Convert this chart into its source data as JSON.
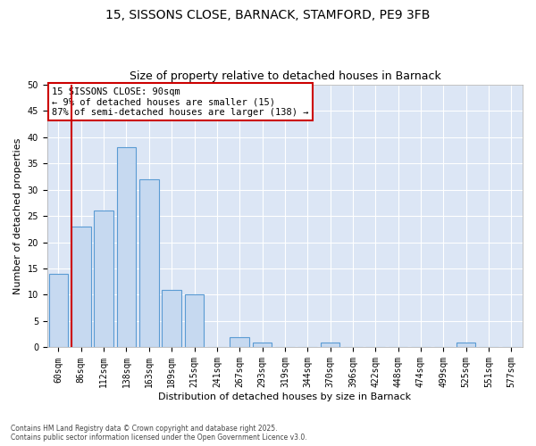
{
  "title_line1": "15, SISSONS CLOSE, BARNACK, STAMFORD, PE9 3FB",
  "title_line2": "Size of property relative to detached houses in Barnack",
  "xlabel": "Distribution of detached houses by size in Barnack",
  "ylabel": "Number of detached properties",
  "footnote": "Contains HM Land Registry data © Crown copyright and database right 2025.\nContains public sector information licensed under the Open Government Licence v3.0.",
  "bin_labels": [
    "60sqm",
    "86sqm",
    "112sqm",
    "138sqm",
    "163sqm",
    "189sqm",
    "215sqm",
    "241sqm",
    "267sqm",
    "293sqm",
    "319sqm",
    "344sqm",
    "370sqm",
    "396sqm",
    "422sqm",
    "448sqm",
    "474sqm",
    "499sqm",
    "525sqm",
    "551sqm",
    "577sqm"
  ],
  "bar_values": [
    14,
    23,
    26,
    38,
    32,
    11,
    10,
    0,
    2,
    1,
    0,
    0,
    1,
    0,
    0,
    0,
    0,
    0,
    1,
    0,
    0
  ],
  "bar_color": "#c6d9f0",
  "bar_edge_color": "#5a9bd3",
  "red_line_index": 1,
  "annotation_text": "15 SISSONS CLOSE: 90sqm\n← 9% of detached houses are smaller (15)\n87% of semi-detached houses are larger (138) →",
  "annotation_box_color": "#ffffff",
  "annotation_border_color": "#cc0000",
  "ylim": [
    0,
    50
  ],
  "yticks": [
    0,
    5,
    10,
    15,
    20,
    25,
    30,
    35,
    40,
    45,
    50
  ],
  "background_color": "#dce6f5",
  "grid_color": "#ffffff",
  "fig_bg_color": "#ffffff",
  "title_fontsize": 10,
  "subtitle_fontsize": 9,
  "axis_label_fontsize": 8,
  "tick_fontsize": 7,
  "annotation_fontsize": 7.5
}
